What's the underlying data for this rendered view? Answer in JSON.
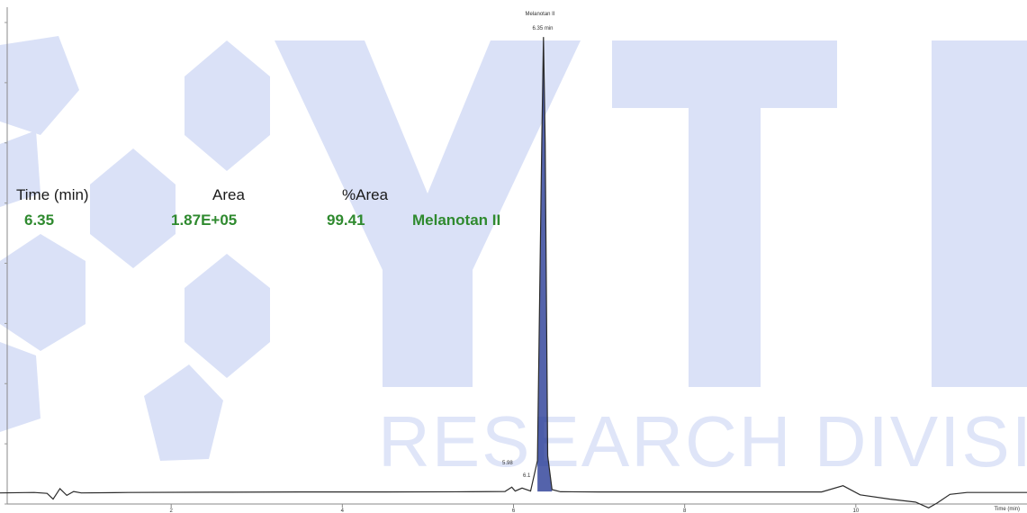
{
  "colors": {
    "watermark": "#dae1f7",
    "trace": "#2b2b2b",
    "peak_fill": "#1b2f8f",
    "green_text": "#2f8a2f"
  },
  "watermark": {
    "letters": "YTE",
    "subtitle": "RESEARCH DIVISI"
  },
  "peak_table": {
    "headers": {
      "time": "Time (min)",
      "area": "Area",
      "pct_area": "%Area"
    },
    "row": {
      "time": "6.35",
      "area": "1.87E+05",
      "pct_area": "99.41",
      "name": "Melanotan II"
    }
  },
  "chart_data": {
    "type": "line",
    "title": "",
    "xlabel": "Time (min)",
    "ylabel": "",
    "xlim": [
      0,
      12
    ],
    "ylim": [
      0,
      100
    ],
    "x_ticks": [
      {
        "value": 2,
        "label": "2"
      },
      {
        "value": 4,
        "label": "4"
      },
      {
        "value": 6,
        "label": "6"
      },
      {
        "value": 8,
        "label": "8"
      },
      {
        "value": 10,
        "label": "10"
      }
    ],
    "annotations": {
      "peak_name": "Melanotan II",
      "peak_time": "6.35 min",
      "small_peak_a": "5.98",
      "small_peak_b": "6.1"
    },
    "series": [
      {
        "x": [
          0.0,
          0.4,
          0.55,
          0.62,
          0.7,
          0.78,
          0.86,
          0.95,
          1.5,
          2.5,
          3.5,
          4.5,
          5.5,
          5.9,
          5.98,
          6.02,
          6.1,
          6.2,
          6.28,
          6.33,
          6.35,
          6.37,
          6.4,
          6.45,
          6.55,
          7.0,
          8.0,
          9.0,
          9.6,
          9.85,
          10.05,
          10.4,
          10.7,
          10.85,
          10.95,
          11.1,
          11.3,
          11.6,
          12.0
        ],
        "y": [
          2.3,
          2.4,
          2.2,
          1.0,
          3.2,
          1.8,
          2.6,
          2.3,
          2.4,
          2.45,
          2.5,
          2.5,
          2.55,
          2.6,
          3.5,
          2.7,
          3.3,
          2.7,
          9.0,
          75.0,
          97.0,
          75.0,
          10.0,
          3.0,
          2.55,
          2.5,
          2.5,
          2.5,
          2.5,
          3.8,
          1.9,
          1.0,
          0.4,
          -0.8,
          0.2,
          2.0,
          2.4,
          2.4,
          2.4
        ]
      }
    ]
  }
}
